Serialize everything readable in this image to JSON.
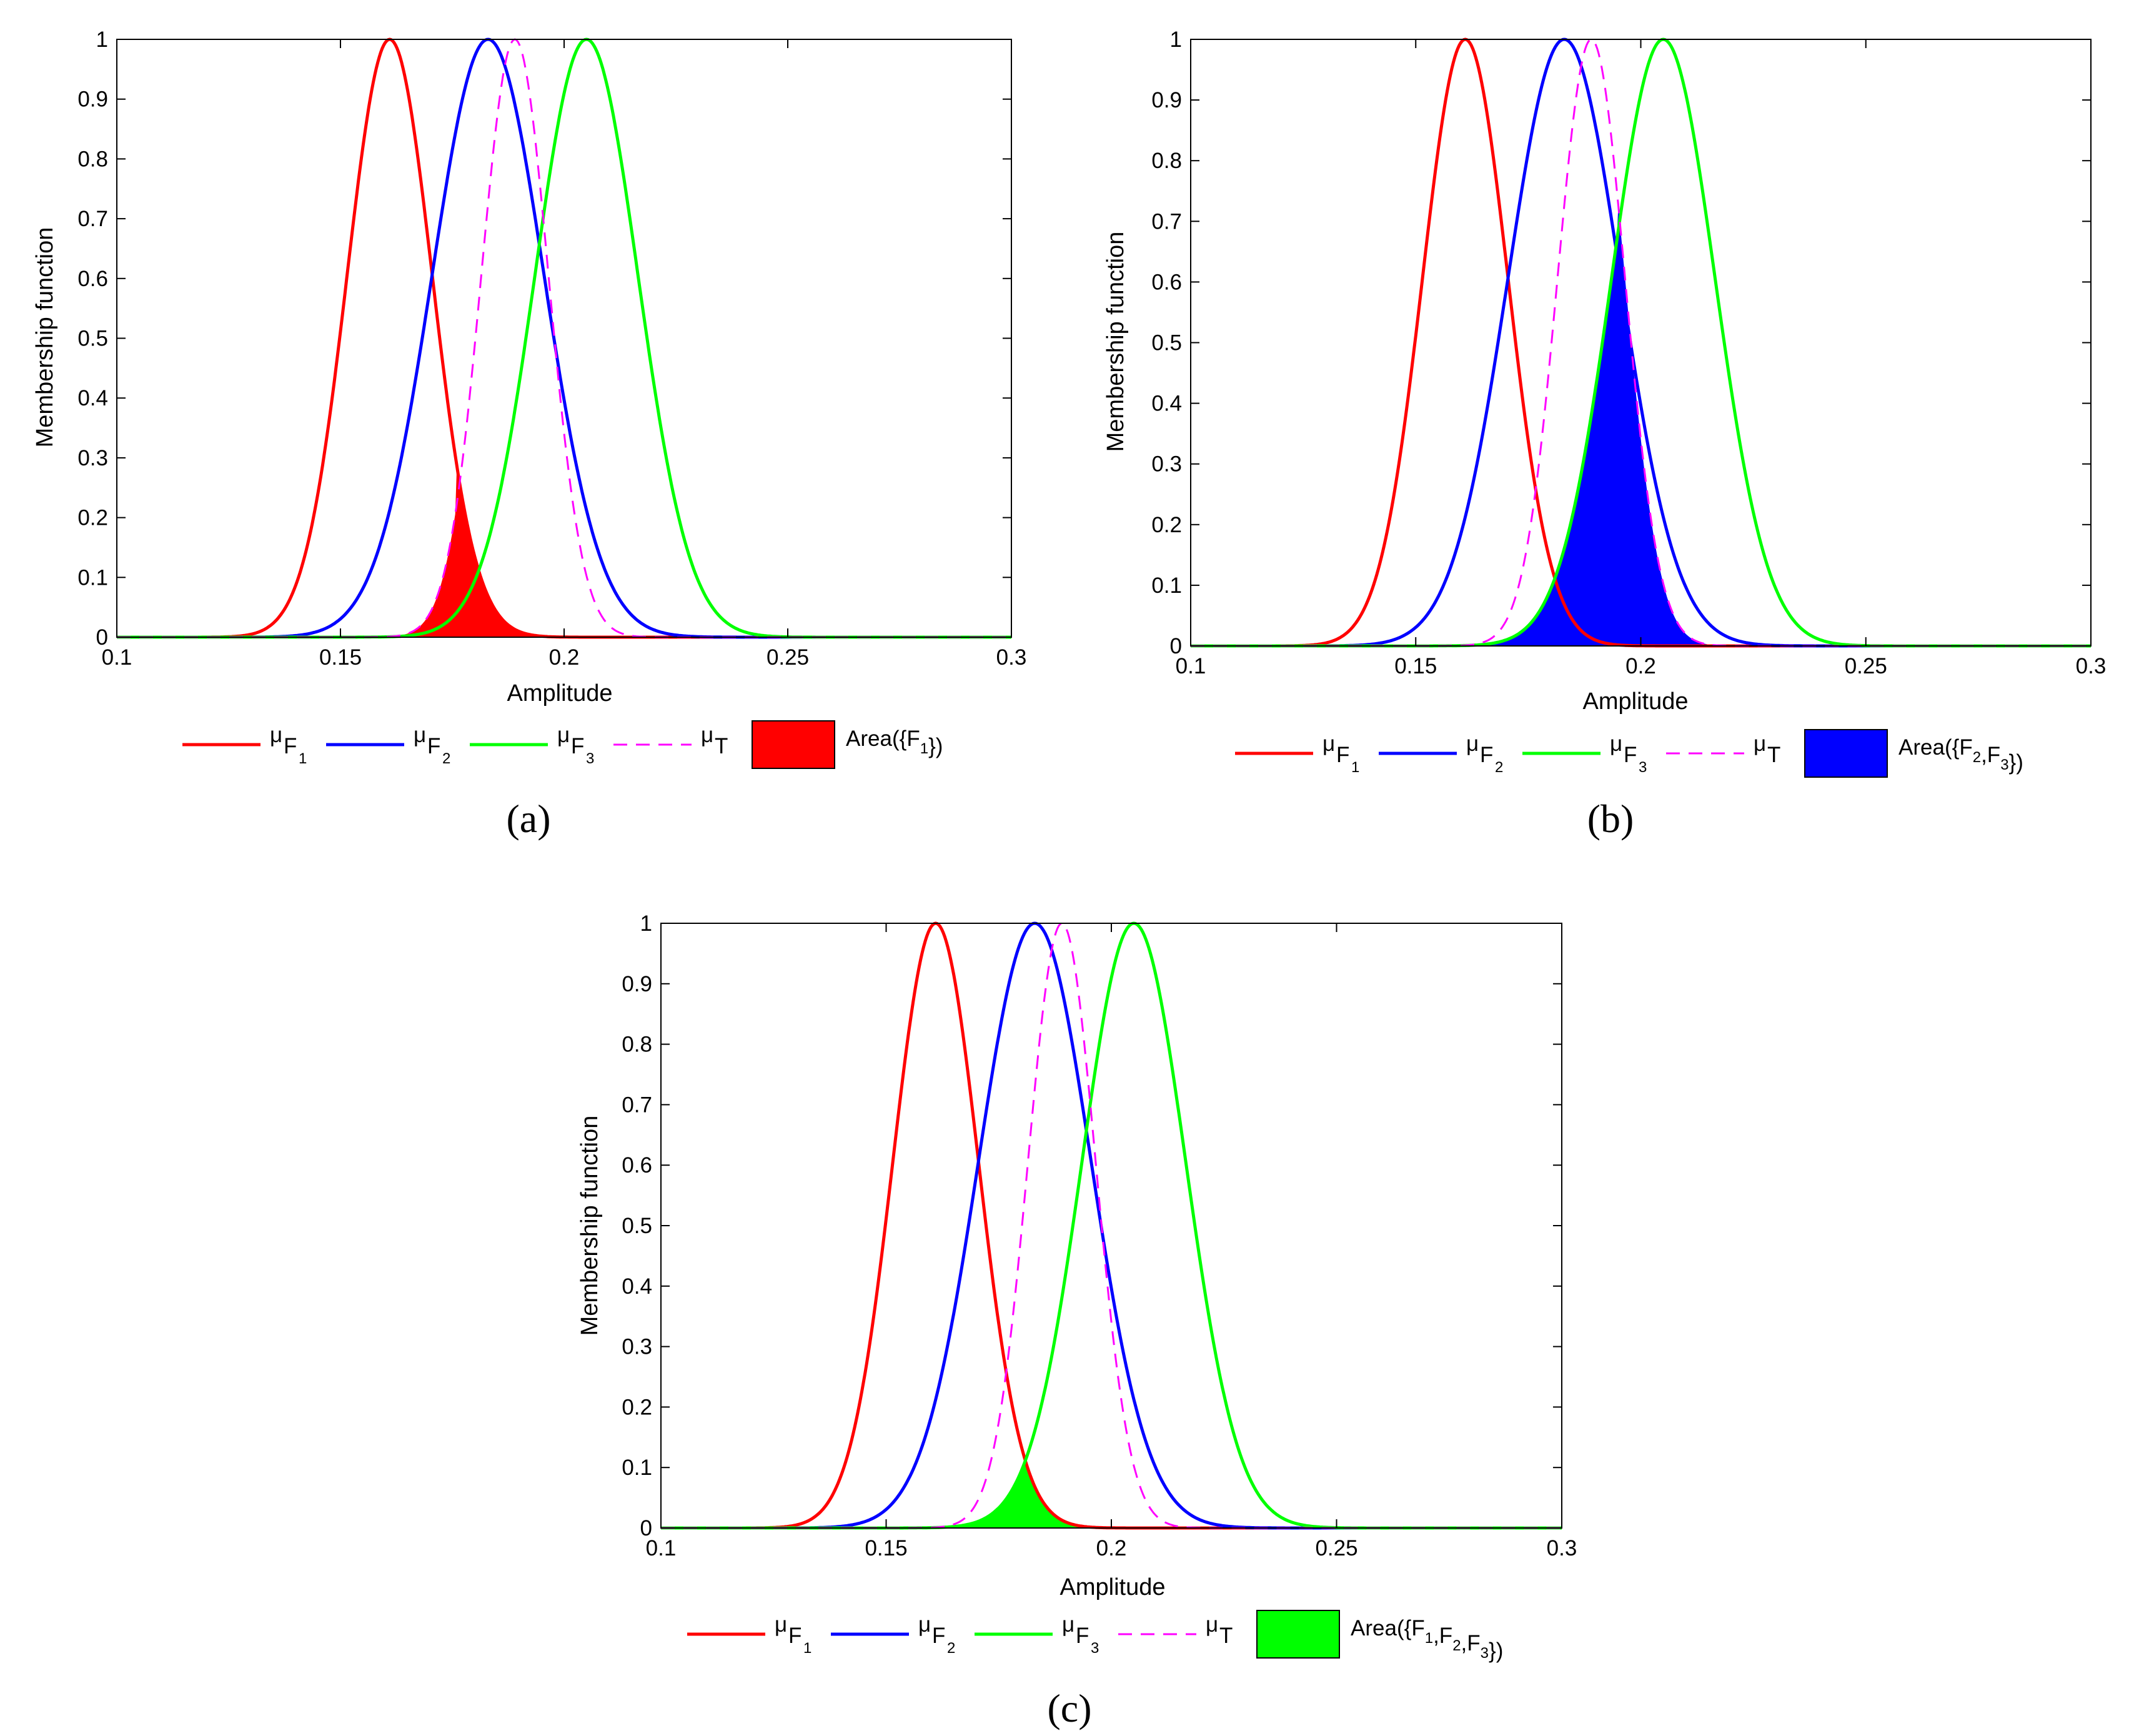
{
  "colors": {
    "F1": "#ff0000",
    "F2": "#0000ff",
    "F3": "#00ff00",
    "T": "#ff00ff"
  },
  "legend": {
    "mu": "μ",
    "F1_sub": "F",
    "F1_index": "1",
    "F2_sub": "F",
    "F2_index": "2",
    "F3_sub": "F",
    "F3_index": "3",
    "T_sub": "T"
  },
  "chart_data": [
    {
      "type": "line",
      "panel": "(a)",
      "xlabel": "Amplitude",
      "ylabel": "Membership function",
      "xlim": [
        0.1,
        0.3
      ],
      "ylim": [
        0,
        1
      ],
      "xticks": [
        "0.1",
        "0.15",
        "0.2",
        "0.25",
        "0.3"
      ],
      "yticks": [
        "0",
        "0.1",
        "0.2",
        "0.3",
        "0.4",
        "0.5",
        "0.6",
        "0.7",
        "0.8",
        "0.9",
        "1"
      ],
      "series": [
        {
          "key": "F1",
          "peak": 0.161,
          "sigma": 0.0095
        },
        {
          "key": "F2",
          "peak": 0.183,
          "sigma": 0.0125
        },
        {
          "key": "F3",
          "peak": 0.205,
          "sigma": 0.0115
        },
        {
          "key": "T",
          "peak": 0.189,
          "sigma": 0.0075,
          "dashed": true
        }
      ],
      "area": {
        "label": "Area({F",
        "label_sets": [
          [
            "F",
            "1"
          ]
        ],
        "fill": "F1",
        "of": "F1",
        "x_range": [
          0.155,
          0.3
        ]
      },
      "legend_area_text": "Area({F1})"
    },
    {
      "type": "line",
      "panel": "(b)",
      "xlabel": "Amplitude",
      "ylabel": "Membership function",
      "xlim": [
        0.1,
        0.3
      ],
      "ylim": [
        0,
        1
      ],
      "xticks": [
        "0.1",
        "0.15",
        "0.2",
        "0.25",
        "0.3"
      ],
      "yticks": [
        "0",
        "0.1",
        "0.2",
        "0.3",
        "0.4",
        "0.5",
        "0.6",
        "0.7",
        "0.8",
        "0.9",
        "1"
      ],
      "series": [
        {
          "key": "F1",
          "peak": 0.161,
          "sigma": 0.0095
        },
        {
          "key": "F2",
          "peak": 0.183,
          "sigma": 0.0125
        },
        {
          "key": "F3",
          "peak": 0.205,
          "sigma": 0.0115
        },
        {
          "key": "T",
          "peak": 0.189,
          "sigma": 0.0075,
          "dashed": true
        }
      ],
      "area": {
        "fill": "F2",
        "of": "F2F3",
        "x_range": [
          0.16,
          0.3
        ]
      },
      "legend_area_text": "Area({F2,F3})"
    },
    {
      "type": "line",
      "panel": "(c)",
      "xlabel": "Amplitude",
      "ylabel": "Membership function",
      "xlim": [
        0.1,
        0.3
      ],
      "ylim": [
        0,
        1
      ],
      "xticks": [
        "0.1",
        "0.15",
        "0.2",
        "0.25",
        "0.3"
      ],
      "yticks": [
        "0",
        "0.1",
        "0.2",
        "0.3",
        "0.4",
        "0.5",
        "0.6",
        "0.7",
        "0.8",
        "0.9",
        "1"
      ],
      "series": [
        {
          "key": "F1",
          "peak": 0.161,
          "sigma": 0.0095
        },
        {
          "key": "F2",
          "peak": 0.183,
          "sigma": 0.0125
        },
        {
          "key": "F3",
          "peak": 0.205,
          "sigma": 0.0115
        },
        {
          "key": "T",
          "peak": 0.189,
          "sigma": 0.0075,
          "dashed": true
        }
      ],
      "area": {
        "fill": "F3",
        "of": "F1F2F3",
        "x_range": [
          0.16,
          0.2
        ]
      },
      "legend_area_text": "Area({F1,F2,F3})"
    }
  ]
}
